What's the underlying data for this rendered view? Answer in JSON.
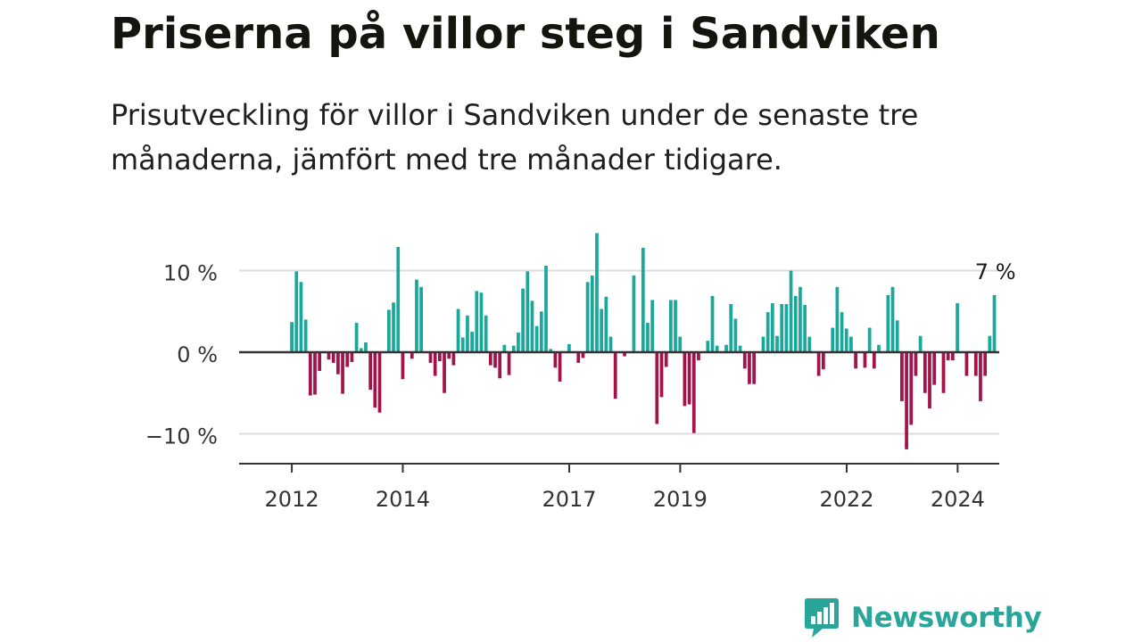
{
  "title": "Priserna på villor steg i Sandviken",
  "subtitle": "Prisutveckling för villor i Sandviken under de senaste tre månaderna, jämfört med tre månader tidigare.",
  "brand": {
    "name": "Newsworthy",
    "icon": "newsworthy-logo-icon"
  },
  "colors": {
    "positive": "#1aa89b",
    "negative": "#a2124b",
    "zero_line": "#333333",
    "grid": "#dddddd",
    "brand": "#2aa59a"
  },
  "chart_data": {
    "type": "bar",
    "y_tick_labels": [
      "10 %",
      "0 %",
      "−10 %"
    ],
    "y_ticks": [
      10,
      0,
      -10
    ],
    "ylim": [
      -14,
      15
    ],
    "x_tick_labels": [
      "2012",
      "2014",
      "2017",
      "2019",
      "2022",
      "2024"
    ],
    "x_ticks": [
      2012,
      2014,
      2017,
      2019,
      2022,
      2024
    ],
    "xlim": [
      2011.05,
      2024.75
    ],
    "grid": true,
    "annotation": "7 %",
    "x_start": 2012,
    "x_step": 0.0833,
    "values": [
      3.7,
      9.9,
      8.6,
      4.0,
      -5.3,
      -5.2,
      -2.3,
      0,
      -0.9,
      -1.3,
      -2.7,
      -5.1,
      -1.8,
      -1.2,
      3.6,
      0.5,
      1.2,
      -4.6,
      -6.8,
      -7.4,
      0,
      5.2,
      6.1,
      12.9,
      -3.3,
      0,
      -0.8,
      8.9,
      8.0,
      0,
      -1.3,
      -2.9,
      -1.1,
      -5.0,
      -0.8,
      -1.6,
      5.3,
      1.8,
      4.5,
      2.5,
      7.5,
      7.3,
      4.5,
      -1.6,
      -1.9,
      -3.2,
      0.9,
      -2.8,
      0.8,
      2.4,
      7.8,
      9.9,
      6.3,
      3.2,
      5.0,
      10.6,
      0.4,
      -1.9,
      -3.6,
      0,
      1.0,
      0,
      -1.3,
      -0.7,
      8.6,
      9.4,
      14.6,
      5.3,
      6.8,
      1.9,
      -5.7,
      0,
      -0.5,
      0,
      9.4,
      0,
      12.8,
      3.6,
      6.4,
      -8.8,
      -5.5,
      -1.8,
      6.4,
      6.4,
      1.9,
      -6.6,
      -6.4,
      -9.9,
      -1.0,
      0,
      1.4,
      6.9,
      0.8,
      0,
      0.9,
      5.9,
      4.1,
      0.8,
      -2.0,
      -3.9,
      -3.9,
      0,
      1.9,
      4.9,
      6.0,
      2.0,
      5.9,
      5.9,
      10.0,
      6.9,
      8.0,
      5.8,
      1.9,
      0,
      -2.9,
      -2.1,
      0,
      3.0,
      8.0,
      4.9,
      2.9,
      1.9,
      -2.0,
      0,
      -1.9,
      3.0,
      -2.0,
      0.9,
      0,
      7.0,
      8.0,
      3.9,
      -6.0,
      -11.9,
      -8.9,
      -2.9,
      2.0,
      -5.0,
      -6.9,
      -4.0,
      0,
      -5.0,
      -1.0,
      -1.0,
      6.0,
      0,
      -2.9,
      0,
      -2.9,
      -6.0,
      -2.9,
      2.0,
      7.0
    ]
  }
}
